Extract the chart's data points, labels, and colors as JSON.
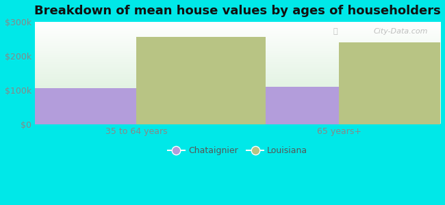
{
  "title": "Breakdown of mean house values by ages of householders",
  "categories": [
    "35 to 64 years",
    "65 years+"
  ],
  "chataignier_values": [
    105000,
    110000
  ],
  "louisiana_values": [
    255000,
    240000
  ],
  "chataignier_color": "#b39ddb",
  "louisiana_color": "#b8c484",
  "background_color": "#00e8e8",
  "plot_bg_top": "#ffffff",
  "plot_bg_bottom": "#d8f0d8",
  "ylim": [
    0,
    300000
  ],
  "yticks": [
    0,
    100000,
    200000,
    300000
  ],
  "ytick_labels": [
    "$0",
    "$100k",
    "$200k",
    "$300k"
  ],
  "bar_width": 0.32,
  "legend_labels": [
    "Chataignier",
    "Louisiana"
  ],
  "title_fontsize": 13,
  "watermark": "City-Data.com",
  "tick_color": "#888888",
  "grid_color": "#cccccc"
}
